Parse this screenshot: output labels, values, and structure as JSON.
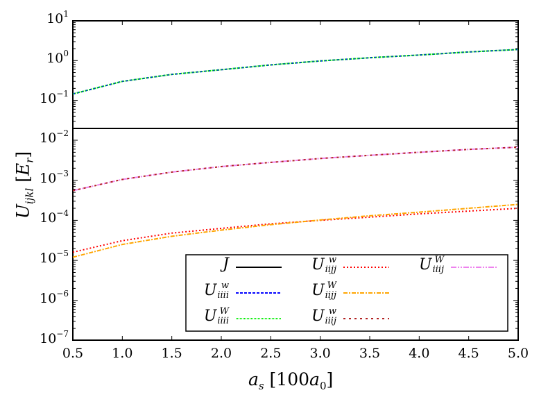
{
  "chart_data": [
    {
      "type": "line",
      "panel": "top",
      "yscale": "log",
      "xlim": [
        0.5,
        5.0
      ],
      "ylim": [
        0.0197,
        10
      ],
      "x": [
        0.5,
        1.0,
        1.5,
        2.0,
        2.5,
        3.0,
        3.5,
        4.0,
        4.5,
        5.0
      ],
      "y_tick_labels": [
        {
          "base": "10",
          "exp": "1"
        },
        {
          "base": "10",
          "exp": "0"
        },
        {
          "base": "10",
          "exp": "−1"
        }
      ],
      "series": [
        {
          "name": "U_iiii^w",
          "color": "#0000ff",
          "style": "dashed",
          "values": [
            0.145,
            0.3,
            0.45,
            0.59,
            0.78,
            0.98,
            1.18,
            1.38,
            1.65,
            1.9
          ]
        },
        {
          "name": "U_iiii^W",
          "color": "#00ee00",
          "style": "dotted",
          "values": [
            0.145,
            0.3,
            0.45,
            0.59,
            0.78,
            0.98,
            1.18,
            1.38,
            1.65,
            1.9
          ]
        }
      ]
    },
    {
      "type": "line",
      "panel": "bottom",
      "yscale": "log",
      "xlim": [
        0.5,
        5.0
      ],
      "ylim": [
        1e-07,
        0.0197
      ],
      "x": [
        0.5,
        1.0,
        1.5,
        2.0,
        2.5,
        3.0,
        3.5,
        4.0,
        4.5,
        5.0
      ],
      "y_tick_labels": [
        {
          "base": "10",
          "exp": "−2"
        },
        {
          "base": "10",
          "exp": "−3"
        },
        {
          "base": "10",
          "exp": "−4"
        },
        {
          "base": "10",
          "exp": "−5"
        },
        {
          "base": "10",
          "exp": "−6"
        },
        {
          "base": "10",
          "exp": "−7"
        }
      ],
      "series": [
        {
          "name": "U_iijj^w",
          "color": "#ff0000",
          "style": "dotted",
          "values": [
            1.6e-05,
            3.1e-05,
            4.8e-05,
            6.3e-05,
            8.2e-05,
            0.0001,
            0.00012,
            0.000145,
            0.00017,
            0.0002
          ]
        },
        {
          "name": "U_iijj^W",
          "color": "#ffa500",
          "style": "dash-dot",
          "values": [
            1.2e-05,
            2.5e-05,
            4e-05,
            5.7e-05,
            7.8e-05,
            0.000102,
            0.00013,
            0.00016,
            0.0002,
            0.00025
          ]
        },
        {
          "name": "U_iiij^W",
          "color": "#ee82ee",
          "style": "dash-dot-dot",
          "values": [
            0.00055,
            0.00105,
            0.0016,
            0.0022,
            0.0028,
            0.0035,
            0.0042,
            0.005,
            0.0059,
            0.0067
          ]
        },
        {
          "name": "U_iiij^w",
          "color": "#b22222",
          "style": "sparse-dashed",
          "values": [
            0.00055,
            0.00105,
            0.0016,
            0.0022,
            0.0028,
            0.0035,
            0.0042,
            0.005,
            0.0059,
            0.0067
          ]
        }
      ]
    }
  ],
  "x_tick_labels": [
    "0.5",
    "1.0",
    "1.5",
    "2.0",
    "2.5",
    "3.0",
    "3.5",
    "4.0",
    "4.5",
    "5.0"
  ],
  "xlabel": {
    "sym": "a",
    "sub": "s",
    "rest": " [100",
    "sym2": "a",
    "sub2": "0",
    "close": "]"
  },
  "ylabel": {
    "sym": "U",
    "sub": "ijkl",
    "rest": " [",
    "sym2": "E",
    "sub2": "r",
    "close": "]"
  },
  "legend": {
    "placement": "lower-right",
    "entries": [
      {
        "sym": "J",
        "sub": "",
        "sup": "",
        "color": "#000000",
        "dash": ""
      },
      {
        "sym": "U",
        "sub": "iiii",
        "sup": "w",
        "color": "#0000ff",
        "dash": "4,2"
      },
      {
        "sym": "U",
        "sub": "iiii",
        "sup": "W",
        "color": "#00ee00",
        "dash": "1,1"
      },
      {
        "sym": "U",
        "sub": "iijj",
        "sup": "w",
        "color": "#ff0000",
        "dash": "2,3"
      },
      {
        "sym": "U",
        "sub": "iijj",
        "sup": "W",
        "color": "#ffa500",
        "dash": "6,2,2,2"
      },
      {
        "sym": "U",
        "sub": "iiij",
        "sup": "w",
        "color": "#b22222",
        "dash": "3,5"
      },
      {
        "sym": "U",
        "sub": "iiij",
        "sup": "W",
        "color": "#ee82ee",
        "dash": "8,2,2,2,2,2"
      }
    ]
  }
}
